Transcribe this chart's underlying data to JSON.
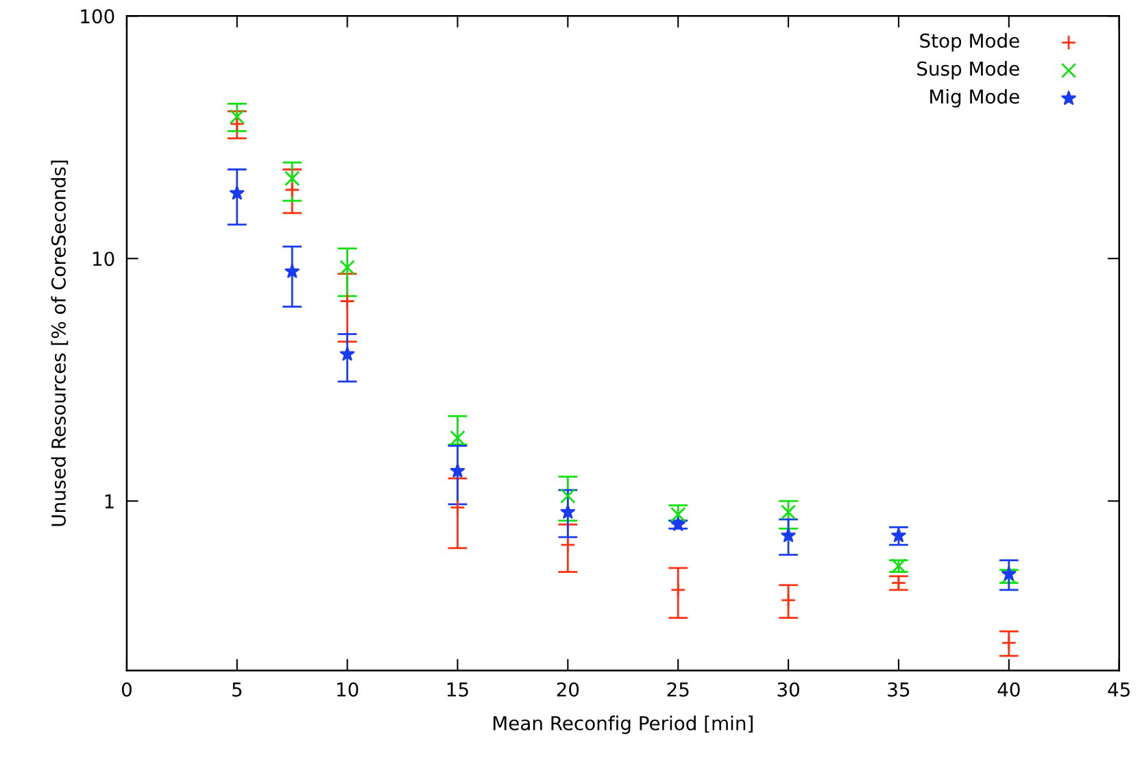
{
  "chart_data": {
    "type": "scatter",
    "xlabel": "Mean Reconfig Period [min]",
    "ylabel": "Unused Resources [% of CoreSeconds]",
    "x": [
      5,
      7.5,
      10,
      15,
      20,
      25,
      30,
      35,
      40
    ],
    "series": [
      {
        "name": "Stop Mode",
        "color": "#ff3010",
        "marker": "plus",
        "values": [
          35.9,
          19.2,
          6.67,
          0.94,
          0.66,
          0.43,
          0.39,
          0.46,
          0.26
        ],
        "errors": [
          [
            31.3,
            40.5
          ],
          [
            15.4,
            23.3
          ],
          [
            4.54,
            8.65
          ],
          [
            0.64,
            1.24
          ],
          [
            0.51,
            0.8
          ],
          [
            0.33,
            0.53
          ],
          [
            0.33,
            0.45
          ],
          [
            0.43,
            0.49
          ],
          [
            0.23,
            0.29
          ]
        ]
      },
      {
        "name": "Susp Mode",
        "color": "#10e010",
        "marker": "cross",
        "values": [
          38.4,
          21.4,
          9.19,
          1.82,
          1.05,
          0.88,
          0.9,
          0.54,
          0.49
        ],
        "errors": [
          [
            33.5,
            43.5
          ],
          [
            17.3,
            24.9
          ],
          [
            7.0,
            11.0
          ],
          [
            1.71,
            2.24
          ],
          [
            0.83,
            1.26
          ],
          [
            0.83,
            0.96
          ],
          [
            0.77,
            1.0
          ],
          [
            0.51,
            0.57
          ],
          [
            0.46,
            0.52
          ]
        ]
      },
      {
        "name": "Mig Mode",
        "color": "#1a3cf0",
        "marker": "star",
        "values": [
          18.6,
          8.84,
          4.03,
          1.33,
          0.9,
          0.8,
          0.72,
          0.72,
          0.5
        ],
        "errors": [
          [
            13.8,
            23.3
          ],
          [
            6.33,
            11.2
          ],
          [
            3.11,
            4.88
          ],
          [
            0.97,
            1.69
          ],
          [
            0.71,
            1.11
          ],
          [
            0.77,
            0.83
          ],
          [
            0.6,
            0.84
          ],
          [
            0.66,
            0.78
          ],
          [
            0.43,
            0.57
          ]
        ]
      }
    ],
    "log": "y",
    "xlim": [
      0,
      45
    ],
    "xticks": [
      0,
      5,
      10,
      15,
      20,
      25,
      30,
      35,
      40,
      45
    ],
    "ylim": [
      0.2,
      100
    ],
    "yticks": [
      1,
      10,
      100
    ],
    "grid": false,
    "legend": "top right"
  }
}
